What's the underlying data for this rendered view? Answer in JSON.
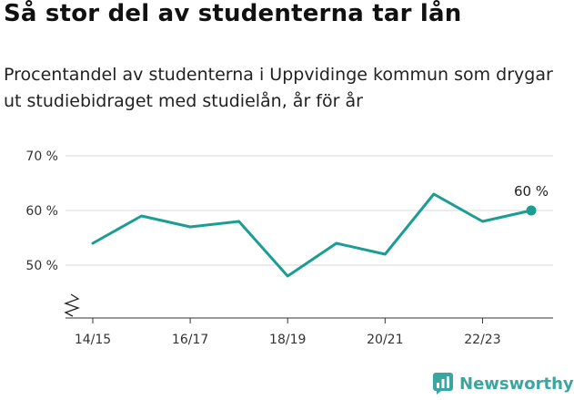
{
  "header": {
    "title": "Så stor del av studenterna tar lån",
    "subtitle": "Procentandel av studenterna i Uppvidinge kommun som drygar ut studiebidraget med studielån, år för år"
  },
  "chart_data": {
    "type": "line",
    "title": "Så stor del av studenterna tar lån",
    "x": [
      "14/15",
      "15/16",
      "16/17",
      "17/18",
      "18/19",
      "19/20",
      "20/21",
      "21/22",
      "22/23",
      "23/24"
    ],
    "xticks": [
      "14/15",
      "16/17",
      "18/19",
      "20/21",
      "22/23"
    ],
    "series": [
      {
        "values": [
          54,
          59,
          57,
          58,
          48,
          54,
          52,
          63,
          58,
          60
        ],
        "color": "#1a9e93"
      }
    ],
    "yticks": [
      {
        "value": 50,
        "label": "50 %"
      },
      {
        "value": 60,
        "label": "60 %"
      },
      {
        "value": 70,
        "label": "70 %"
      }
    ],
    "ylim": [
      41,
      73
    ],
    "grid": true,
    "axis_break": true,
    "last_value_label": "60 %"
  },
  "footer": {
    "brand": "Newsworthy",
    "brand_color": "#3aa6a0",
    "icon": "newsworthy-logo-icon"
  }
}
